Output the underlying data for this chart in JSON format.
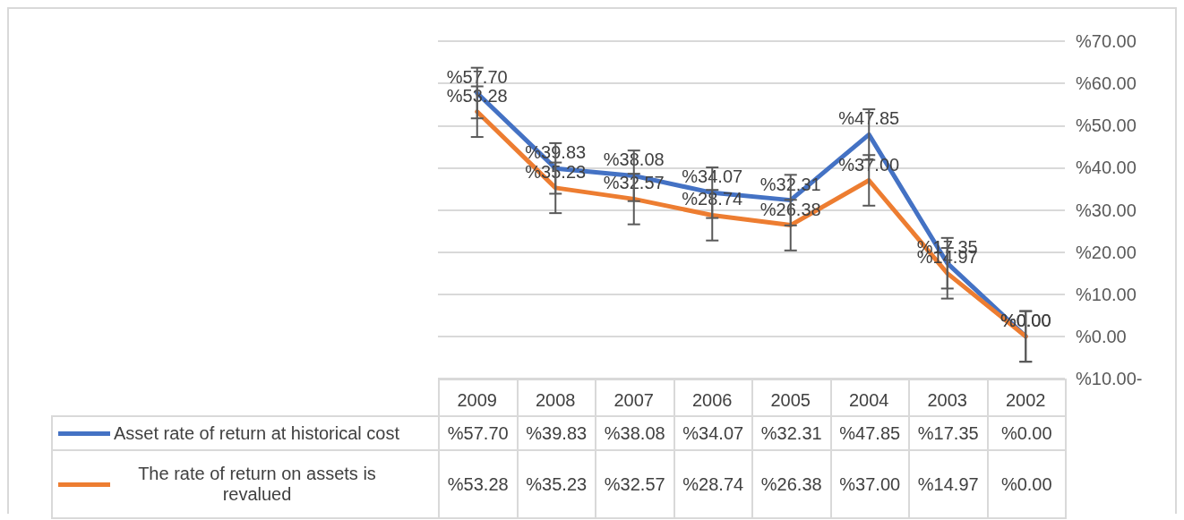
{
  "chart_data": {
    "type": "line",
    "categories": [
      "2009",
      "2008",
      "2007",
      "2006",
      "2005",
      "2004",
      "2003",
      "2002"
    ],
    "series": [
      {
        "name": "Asset rate of return at historical cost",
        "color": "#4472c4",
        "values": [
          57.7,
          39.83,
          38.08,
          34.07,
          32.31,
          47.85,
          17.35,
          0.0
        ],
        "errors": [
          6,
          6,
          6,
          6,
          6,
          6,
          6,
          6
        ],
        "value_labels": [
          "%57.70",
          "%39.83",
          "%38.08",
          "%34.07",
          "%32.31",
          "%47.85",
          "%17.35",
          "%0.00"
        ]
      },
      {
        "name": "The rate of return on assets is revalued",
        "color": "#ed7d31",
        "values": [
          53.28,
          35.23,
          32.57,
          28.74,
          26.38,
          37.0,
          14.97,
          0.0
        ],
        "errors": [
          6,
          6,
          6,
          6,
          6,
          6,
          6,
          6
        ],
        "value_labels": [
          "%53.28",
          "%35.23",
          "%32.57",
          "%28.74",
          "%26.38",
          "%37.00",
          "%14.97",
          "%0.00"
        ]
      }
    ],
    "ylim": [
      -10,
      70
    ],
    "yticks": [
      {
        "value": -10,
        "label": "%10.00-"
      },
      {
        "value": 0,
        "label": "%0.00"
      },
      {
        "value": 10,
        "label": "%10.00"
      },
      {
        "value": 20,
        "label": "%20.00"
      },
      {
        "value": 30,
        "label": "%30.00"
      },
      {
        "value": 40,
        "label": "%40.00"
      },
      {
        "value": 50,
        "label": "%50.00"
      },
      {
        "value": 60,
        "label": "%60.00"
      },
      {
        "value": 70,
        "label": "%70.00"
      }
    ],
    "grid": "y",
    "legend": "bottom",
    "marker": "none",
    "line_style": "solid"
  }
}
